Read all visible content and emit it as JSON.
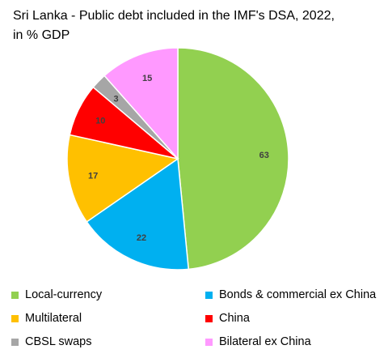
{
  "chart_data": {
    "type": "pie",
    "title_line1": "Sri Lanka - Public debt included in the IMF's DSA, 2022,",
    "title_line2": "in % GDP",
    "slices": [
      {
        "name": "Local-currency",
        "value": 63,
        "label": "63",
        "color": "#92d050"
      },
      {
        "name": "Bonds & commercial ex China",
        "value": 22,
        "label": "22",
        "color": "#00b0f0"
      },
      {
        "name": "Multilateral",
        "value": 17,
        "label": "17",
        "color": "#ffc000"
      },
      {
        "name": "China",
        "value": 10,
        "label": "10",
        "color": "#ff0000"
      },
      {
        "name": "CBSL swaps",
        "value": 3,
        "label": "3",
        "color": "#a6a6a6"
      },
      {
        "name": "Bilateral ex China",
        "value": 15,
        "label": "15",
        "color": "#ff99ff"
      }
    ],
    "legend_placement": "bottom",
    "legend_order": [
      0,
      1,
      2,
      3,
      4,
      5
    ]
  }
}
